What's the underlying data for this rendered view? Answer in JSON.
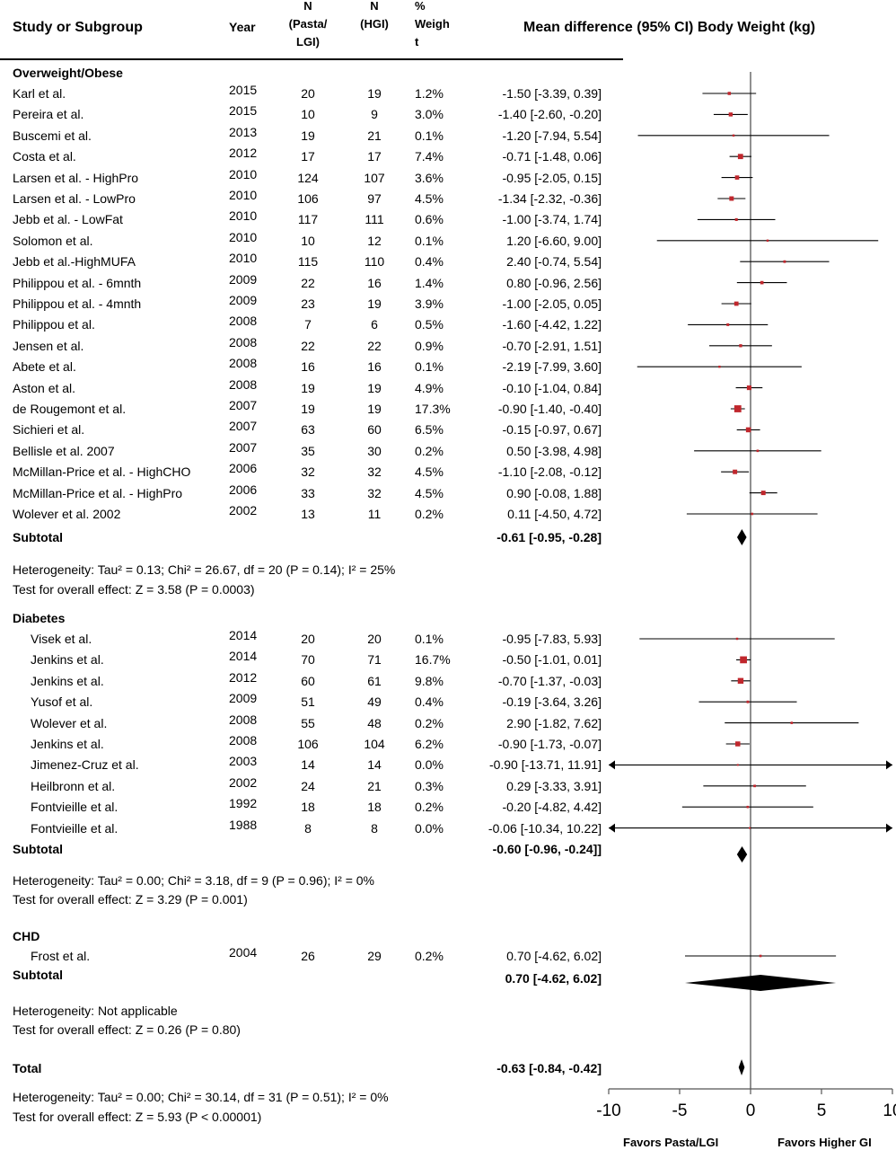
{
  "headers": {
    "study": "Study or Subgroup",
    "year": "Year",
    "n1": [
      "N",
      "(Pasta/",
      "LGI)"
    ],
    "n2": [
      "N",
      "(HGI)"
    ],
    "weight": [
      "%",
      "Weigh",
      "t"
    ],
    "effect": "Mean difference (95% CI)  Body Weight (kg)"
  },
  "groups": [
    {
      "name": "Overweight/Obese",
      "subtotal_label": "Subtotal",
      "subtotal_ci": "-0.61 [-0.95, -0.28]",
      "heterogeneity": "Heterogeneity: Tau² = 0.13; Chi² = 26.67, df = 20 (P = 0.14); I² = 25%",
      "overall": "Test for overall effect: Z = 3.58 (P = 0.0003)"
    },
    {
      "name": "Diabetes",
      "subtotal_label": "Subtotal",
      "subtotal_ci": "-0.60 [-0.96, -0.24]]",
      "heterogeneity": "Heterogeneity: Tau² = 0.00; Chi² = 3.18, df = 9 (P = 0.96); I² = 0%",
      "overall": "Test for overall effect: Z = 3.29 (P = 0.001)"
    },
    {
      "name": "CHD",
      "subtotal_label": "Subtotal",
      "subtotal_ci": "0.70 [-4.62, 6.02]",
      "heterogeneity": "Heterogeneity: Not applicable",
      "overall": "Test for overall effect: Z = 0.26 (P = 0.80)"
    }
  ],
  "total": {
    "label": "Total",
    "ci": "-0.63 [-0.84, -0.42]",
    "heterogeneity": "Heterogeneity: Tau² = 0.00; Chi² = 30.14, df = 31 (P = 0.51); I² = 0%",
    "overall": "Test for overall effect: Z = 5.93 (P < 0.00001)"
  },
  "axis": {
    "ticks": [
      "-10",
      "-5",
      "0",
      "5",
      "10"
    ],
    "left_label": "Favors Pasta/LGI",
    "right_label": "Favors Higher GI"
  },
  "colors": {
    "marker": "#c0272d",
    "line": "#000000",
    "axis": "#555555"
  },
  "chart_data": {
    "type": "forest",
    "xlim": [
      -10,
      10
    ],
    "xticks": [
      -10,
      -5,
      0,
      5,
      10
    ],
    "studies": [
      {
        "group": 0,
        "study": "Karl et al.",
        "year": "2015",
        "n1": "20",
        "n2": "19",
        "weight": "1.2%",
        "md": -1.5,
        "lo": -3.39,
        "hi": 0.39,
        "ci": "-1.50 [-3.39, 0.39]"
      },
      {
        "group": 0,
        "study": "Pereira et al.",
        "year": "2015",
        "n1": "10",
        "n2": "9",
        "weight": "3.0%",
        "md": -1.4,
        "lo": -2.6,
        "hi": -0.2,
        "ci": "-1.40 [-2.60, -0.20]"
      },
      {
        "group": 0,
        "study": "Buscemi et al.",
        "year": "2013",
        "n1": "19",
        "n2": "21",
        "weight": "0.1%",
        "md": -1.2,
        "lo": -7.94,
        "hi": 5.54,
        "ci": "-1.20 [-7.94, 5.54]"
      },
      {
        "group": 0,
        "study": "Costa et al.",
        "year": "2012",
        "n1": "17",
        "n2": "17",
        "weight": "7.4%",
        "md": -0.71,
        "lo": -1.48,
        "hi": 0.06,
        "ci": "-0.71 [-1.48, 0.06]"
      },
      {
        "group": 0,
        "study": "Larsen et al. - HighPro",
        "year": "2010",
        "n1": "124",
        "n2": "107",
        "weight": "3.6%",
        "md": -0.95,
        "lo": -2.05,
        "hi": 0.15,
        "ci": "-0.95 [-2.05, 0.15]"
      },
      {
        "group": 0,
        "study": "Larsen et al. - LowPro",
        "year": "2010",
        "n1": "106",
        "n2": "97",
        "weight": "4.5%",
        "md": -1.34,
        "lo": -2.32,
        "hi": -0.36,
        "ci": "-1.34 [-2.32, -0.36]"
      },
      {
        "group": 0,
        "study": "Jebb et al. - LowFat",
        "year": "2010",
        "n1": "117",
        "n2": "111",
        "weight": "0.6%",
        "md": -1.0,
        "lo": -3.74,
        "hi": 1.74,
        "ci": "-1.00 [-3.74, 1.74]"
      },
      {
        "group": 0,
        "study": "Solomon et al.",
        "year": "2010",
        "n1": "10",
        "n2": "12",
        "weight": "0.1%",
        "md": 1.2,
        "lo": -6.6,
        "hi": 9.0,
        "ci": "1.20 [-6.60, 9.00]"
      },
      {
        "group": 0,
        "study": "Jebb et al.-HighMUFA",
        "year": "2010",
        "n1": "115",
        "n2": "110",
        "weight": "0.4%",
        "md": 2.4,
        "lo": -0.74,
        "hi": 5.54,
        "ci": "2.40 [-0.74, 5.54]"
      },
      {
        "group": 0,
        "study": "Philippou et al. - 6mnth",
        "year": "2009",
        "n1": "22",
        "n2": "16",
        "weight": "1.4%",
        "md": 0.8,
        "lo": -0.96,
        "hi": 2.56,
        "ci": "0.80 [-0.96, 2.56]"
      },
      {
        "group": 0,
        "study": "Philippou et al. - 4mnth",
        "year": "2009",
        "n1": "23",
        "n2": "19",
        "weight": "3.9%",
        "md": -1.0,
        "lo": -2.05,
        "hi": 0.05,
        "ci": "-1.00 [-2.05, 0.05]"
      },
      {
        "group": 0,
        "study": "Philippou et al.",
        "year": "2008",
        "n1": "7",
        "n2": "6",
        "weight": "0.5%",
        "md": -1.6,
        "lo": -4.42,
        "hi": 1.22,
        "ci": "-1.60 [-4.42, 1.22]"
      },
      {
        "group": 0,
        "study": "Jensen et al.",
        "year": "2008",
        "n1": "22",
        "n2": "22",
        "weight": "0.9%",
        "md": -0.7,
        "lo": -2.91,
        "hi": 1.51,
        "ci": "-0.70 [-2.91, 1.51]"
      },
      {
        "group": 0,
        "study": "Abete et al.",
        "year": "2008",
        "n1": "16",
        "n2": "16",
        "weight": "0.1%",
        "md": -2.19,
        "lo": -7.99,
        "hi": 3.6,
        "ci": "-2.19 [-7.99, 3.60]"
      },
      {
        "group": 0,
        "study": "Aston et al.",
        "year": "2008",
        "n1": "19",
        "n2": "19",
        "weight": "4.9%",
        "md": -0.1,
        "lo": -1.04,
        "hi": 0.84,
        "ci": "-0.10 [-1.04, 0.84]"
      },
      {
        "group": 0,
        "study": "de Rougemont et al.",
        "year": "2007",
        "n1": "19",
        "n2": "19",
        "weight": "17.3%",
        "md": -0.9,
        "lo": -1.4,
        "hi": -0.4,
        "ci": "-0.90 [-1.40, -0.40]"
      },
      {
        "group": 0,
        "study": "Sichieri et al.",
        "year": "2007",
        "n1": "63",
        "n2": "60",
        "weight": "6.5%",
        "md": -0.15,
        "lo": -0.97,
        "hi": 0.67,
        "ci": "-0.15 [-0.97, 0.67]"
      },
      {
        "group": 0,
        "study": "Bellisle et al. 2007",
        "year": "2007",
        "n1": "35",
        "n2": "30",
        "weight": "0.2%",
        "md": 0.5,
        "lo": -3.98,
        "hi": 4.98,
        "ci": "0.50 [-3.98, 4.98]"
      },
      {
        "group": 0,
        "study": "McMillan-Price et al. - HighCHO",
        "year": "2006",
        "n1": "32",
        "n2": "32",
        "weight": "4.5%",
        "md": -1.1,
        "lo": -2.08,
        "hi": -0.12,
        "ci": "-1.10 [-2.08, -0.12]"
      },
      {
        "group": 0,
        "study": "McMillan-Price et al. - HighPro",
        "year": "2006",
        "n1": "33",
        "n2": "32",
        "weight": "4.5%",
        "md": 0.9,
        "lo": -0.08,
        "hi": 1.88,
        "ci": "0.90 [-0.08, 1.88]"
      },
      {
        "group": 0,
        "study": "Wolever et al. 2002",
        "year": "2002",
        "n1": "13",
        "n2": "11",
        "weight": "0.2%",
        "md": 0.11,
        "lo": -4.5,
        "hi": 4.72,
        "ci": "0.11 [-4.50, 4.72]"
      },
      {
        "group": 1,
        "study": "Visek et al.",
        "year": "2014",
        "n1": "20",
        "n2": "20",
        "weight": "0.1%",
        "md": -0.95,
        "lo": -7.83,
        "hi": 5.93,
        "ci": "-0.95 [-7.83, 5.93]"
      },
      {
        "group": 1,
        "study": "Jenkins et al.",
        "year": "2014",
        "n1": "70",
        "n2": "71",
        "weight": "16.7%",
        "md": -0.5,
        "lo": -1.01,
        "hi": 0.01,
        "ci": "-0.50 [-1.01, 0.01]"
      },
      {
        "group": 1,
        "study": "Jenkins et al.",
        "year": "2012",
        "n1": "60",
        "n2": "61",
        "weight": "9.8%",
        "md": -0.7,
        "lo": -1.37,
        "hi": -0.03,
        "ci": "-0.70 [-1.37, -0.03]"
      },
      {
        "group": 1,
        "study": "Yusof et al.",
        "year": "2009",
        "n1": "51",
        "n2": "49",
        "weight": "0.4%",
        "md": -0.19,
        "lo": -3.64,
        "hi": 3.26,
        "ci": "-0.19 [-3.64, 3.26]"
      },
      {
        "group": 1,
        "study": "Wolever et al.",
        "year": "2008",
        "n1": "55",
        "n2": "48",
        "weight": "0.2%",
        "md": 2.9,
        "lo": -1.82,
        "hi": 7.62,
        "ci": "2.90 [-1.82, 7.62]"
      },
      {
        "group": 1,
        "study": "Jenkins et al.",
        "year": "2008",
        "n1": "106",
        "n2": "104",
        "weight": "6.2%",
        "md": -0.9,
        "lo": -1.73,
        "hi": -0.07,
        "ci": "-0.90 [-1.73, -0.07]"
      },
      {
        "group": 1,
        "study": "Jimenez-Cruz et al.",
        "year": "2003",
        "n1": "14",
        "n2": "14",
        "weight": "0.0%",
        "md": -0.9,
        "lo": -13.71,
        "hi": 11.91,
        "ci": "-0.90 [-13.71, 11.91]"
      },
      {
        "group": 1,
        "study": "Heilbronn et al.",
        "year": "2002",
        "n1": "24",
        "n2": "21",
        "weight": "0.3%",
        "md": 0.29,
        "lo": -3.33,
        "hi": 3.91,
        "ci": "0.29 [-3.33, 3.91]"
      },
      {
        "group": 1,
        "study": "Fontvieille et al.",
        "year": "1992",
        "n1": "18",
        "n2": "18",
        "weight": "0.2%",
        "md": -0.2,
        "lo": -4.82,
        "hi": 4.42,
        "ci": "-0.20 [-4.82, 4.42]"
      },
      {
        "group": 1,
        "study": "Fontvieille et al.",
        "year": "1988",
        "n1": "8",
        "n2": "8",
        "weight": "0.0%",
        "md": -0.06,
        "lo": -10.34,
        "hi": 10.22,
        "ci": "-0.06 [-10.34, 10.22]"
      },
      {
        "group": 2,
        "study": "Frost et al.",
        "year": "2004",
        "n1": "26",
        "n2": "29",
        "weight": "0.2%",
        "md": 0.7,
        "lo": -4.62,
        "hi": 6.02,
        "ci": "0.70 [-4.62, 6.02]"
      }
    ],
    "pooled": [
      {
        "label": "Overweight/Obese subtotal",
        "md": -0.61,
        "lo": -0.95,
        "hi": -0.28
      },
      {
        "label": "Diabetes subtotal",
        "md": -0.6,
        "lo": -0.96,
        "hi": -0.24
      },
      {
        "label": "CHD subtotal",
        "md": 0.7,
        "lo": -4.62,
        "hi": 6.02
      },
      {
        "label": "Total",
        "md": -0.63,
        "lo": -0.84,
        "hi": -0.42
      }
    ]
  }
}
